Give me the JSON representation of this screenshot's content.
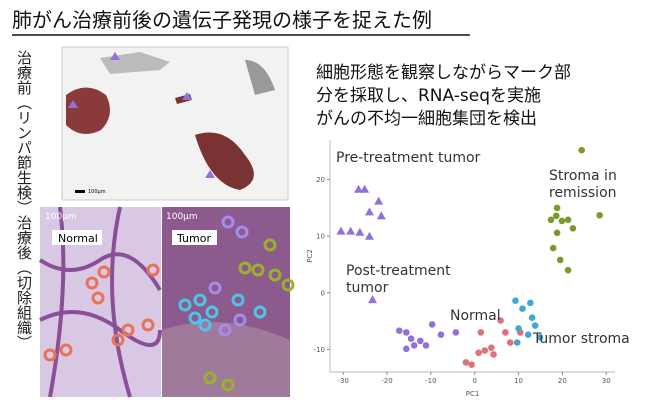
{
  "title": "肺がん治療前後の遺伝子発現の様子を捉えた例",
  "side_labels": [
    "治療前（リンパ節生検）",
    "治療後（切除組織）"
  ],
  "images": {
    "top_scale": "100μm",
    "normal_label": "Normal",
    "normal_scale": "100μm",
    "tumor_label": "Tumor",
    "tumor_scale": "100μm"
  },
  "description": [
    "細胞形態を観察しながらマーク部",
    "分を採取し、RNA-seqを実施",
    "がんの不均一細胞集団を検出"
  ],
  "chart_data": {
    "type": "scatter",
    "x_label": "PC1",
    "y_label": "PC2",
    "xlim": [
      -33,
      32
    ],
    "ylim": [
      -14,
      27
    ],
    "xticks": [
      -30,
      -20,
      -10,
      0,
      10,
      20,
      30
    ],
    "yticks": [
      -10,
      0,
      10,
      20
    ],
    "annotations": [
      [
        "Pre-treatment tumor"
      ],
      [
        "Stroma in",
        "remission"
      ],
      [
        "Post-treatment",
        "tumor"
      ],
      [
        "Normal"
      ],
      [
        "Tumor stroma"
      ]
    ],
    "series": [
      {
        "color": "#9370db",
        "marker": "triangle",
        "x": [
          -26.5,
          -25.1,
          -24,
          -21.9,
          -21.3,
          -30.5,
          -28.3,
          -26.2,
          -24,
          -23.3
        ],
        "values": [
          18.3,
          18.3,
          14.3,
          16.2,
          13.6,
          10.9,
          10.9,
          10.7,
          10,
          -1.2
        ]
      },
      {
        "color": "#9370db",
        "marker": "circle",
        "x": [
          -17.2,
          -15.6,
          -14.5,
          -15.6,
          -13.8,
          -12.4,
          -11.1,
          -9.7,
          -7.7,
          -4.3
        ],
        "values": [
          -6.7,
          -7,
          -8.1,
          -9.9,
          -9.3,
          -8.5,
          -9.3,
          -5.6,
          -7.4,
          -7
        ]
      },
      {
        "color": "#e0707a",
        "marker": "circle",
        "x": [
          -2,
          -0.7,
          0.9,
          2.3,
          3.8,
          4.3,
          1.4,
          7,
          8.1,
          10.4,
          5.9
        ],
        "values": [
          -12.3,
          -12.7,
          -10.6,
          -10.2,
          -9.7,
          -10.9,
          -7,
          -7,
          -8.8,
          -7,
          -4.9
        ]
      },
      {
        "color": "#3fa9d4",
        "marker": "circle",
        "x": [
          9.3,
          10.9,
          12.7,
          13.1,
          13.8,
          10,
          9.7,
          14.9,
          12.2
        ],
        "values": [
          -1.4,
          -2.8,
          -1.8,
          -4.4,
          -5.8,
          -6.3,
          -8.8,
          -7.9,
          -7.4
        ]
      },
      {
        "color": "#7a9a2a",
        "marker": "circle",
        "x": [
          24.4,
          18.8,
          18.6,
          21.3,
          17.4,
          19.9,
          22.4,
          28.5,
          18.8,
          19.5,
          21.3,
          17.9
        ],
        "values": [
          25.2,
          15,
          13.6,
          12.9,
          12.9,
          12.7,
          11.4,
          13.7,
          10.6,
          5.8,
          4,
          7.9
        ]
      }
    ]
  }
}
